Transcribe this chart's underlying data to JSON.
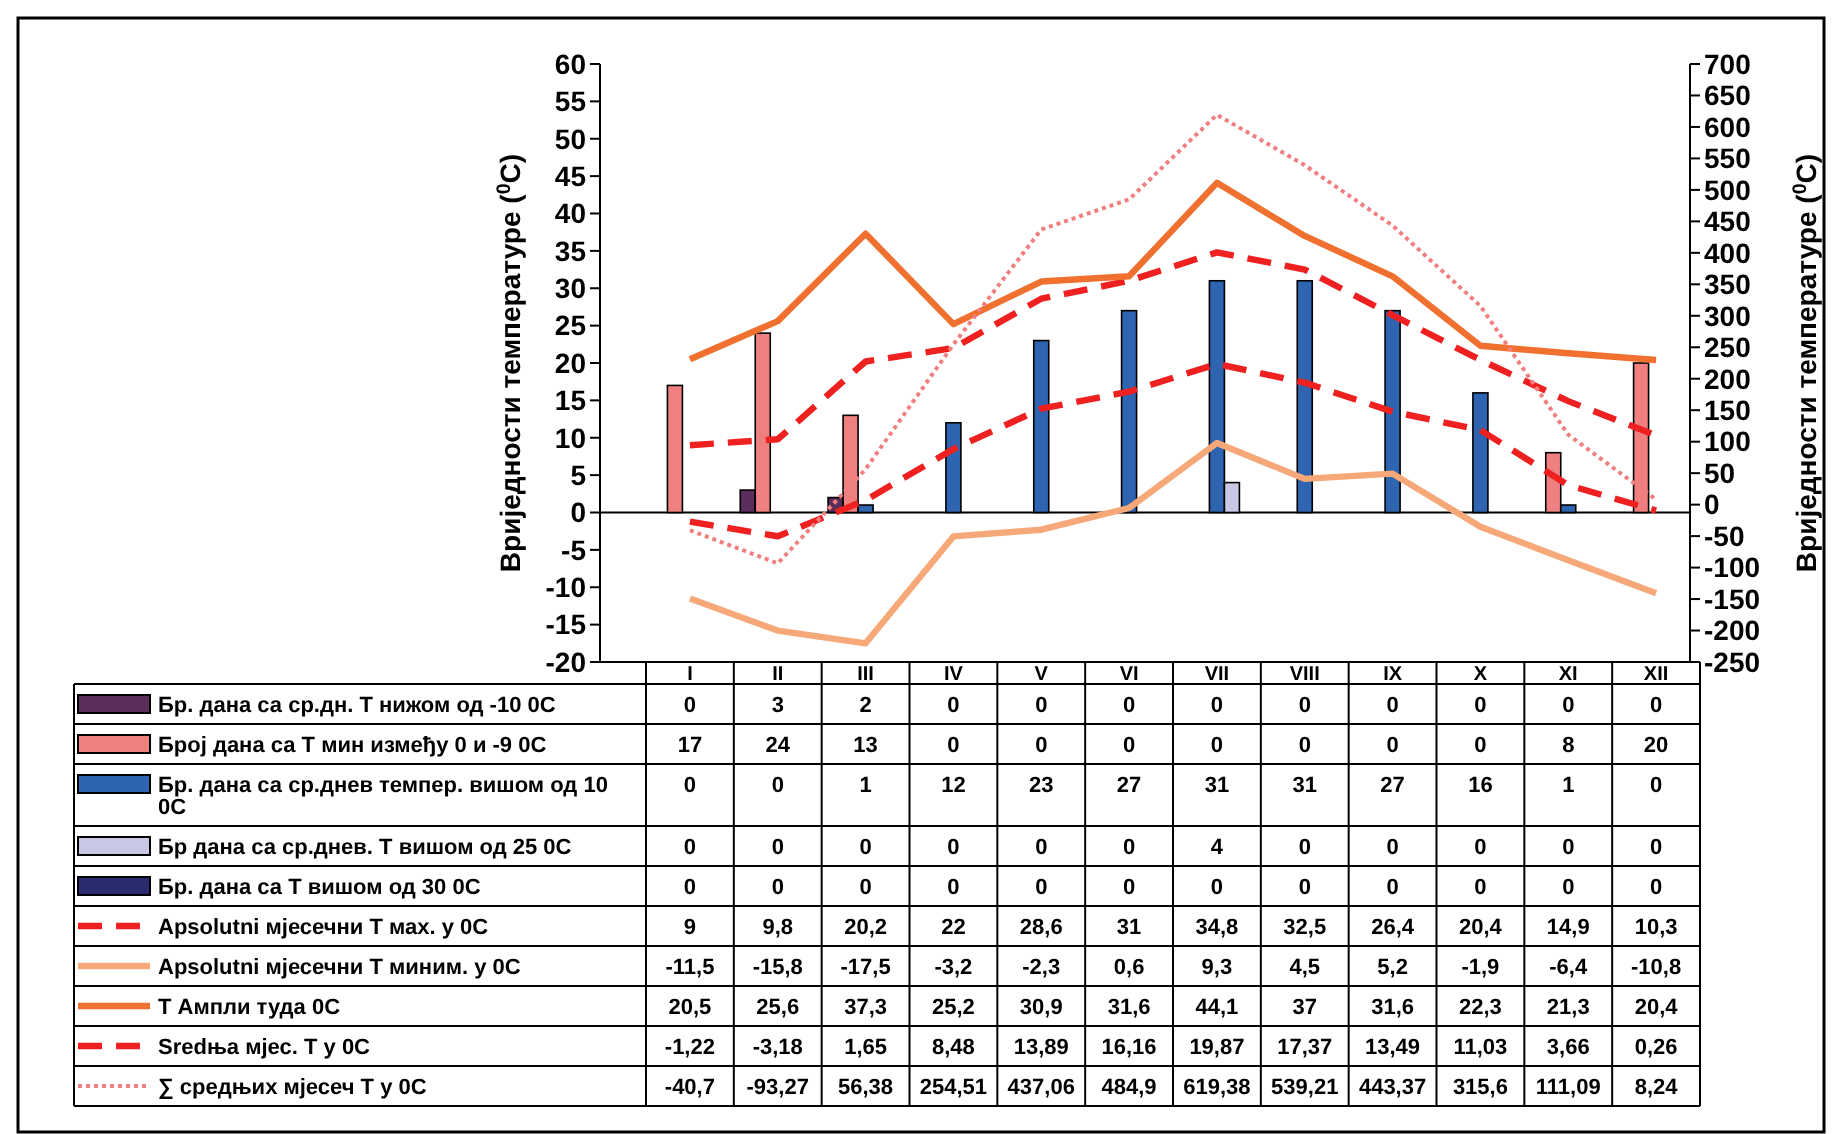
{
  "chart_data": {
    "type": "bar",
    "ylabel": "Вриједности температуре ($^{0}$C)",
    "y2label": "Вриједности температуре ($^{0}$C)",
    "categories": [
      "I",
      "II",
      "III",
      "IV",
      "V",
      "VI",
      "VII",
      "VIII",
      "IX",
      "X",
      "XI",
      "XII"
    ],
    "ylim": [
      -20,
      60
    ],
    "yticks": [
      -20,
      -15,
      -10,
      -5,
      0,
      5,
      10,
      15,
      20,
      25,
      30,
      35,
      40,
      45,
      50,
      55,
      60
    ],
    "y2lim": [
      -250,
      700
    ],
    "y2ticks": [
      -250,
      -200,
      -150,
      -100,
      -50,
      0,
      50,
      100,
      150,
      200,
      250,
      300,
      350,
      400,
      450,
      500,
      550,
      600,
      650,
      700
    ],
    "legend": "bottom",
    "series": [
      {
        "name": "Бр. дана са ср.дн. Т нижом од -10 0С",
        "color": "#5b2d5b",
        "values": [
          0,
          3,
          2,
          0,
          0,
          0,
          0,
          0,
          0,
          0,
          0,
          0
        ],
        "value_labels": [
          "0",
          "3",
          "2",
          "0",
          "0",
          "0",
          "0",
          "0",
          "0",
          "0",
          "0",
          "0"
        ]
      },
      {
        "name": "Број дана са Т мин између 0 и -9 0С",
        "color": "#f08080",
        "values": [
          17,
          24,
          13,
          0,
          0,
          0,
          0,
          0,
          0,
          0,
          8,
          20
        ],
        "value_labels": [
          "17",
          "24",
          "13",
          "0",
          "0",
          "0",
          "0",
          "0",
          "0",
          "0",
          "8",
          "20"
        ]
      },
      {
        "name": "Бр. дана са ср.днев темпер. вишом од 10 0С",
        "color": "#2e64b0",
        "values": [
          0,
          0,
          1,
          12,
          23,
          27,
          31,
          31,
          27,
          16,
          1,
          0
        ],
        "value_labels": [
          "0",
          "0",
          "1",
          "12",
          "23",
          "27",
          "31",
          "31",
          "27",
          "16",
          "1",
          "0"
        ]
      },
      {
        "name": "Бр дана са ср.днев. Т вишом од 25 0С",
        "color": "#c8c8e6",
        "values": [
          0,
          0,
          0,
          0,
          0,
          0,
          4,
          0,
          0,
          0,
          0,
          0
        ],
        "value_labels": [
          "0",
          "0",
          "0",
          "0",
          "0",
          "0",
          "4",
          "0",
          "0",
          "0",
          "0",
          "0"
        ]
      },
      {
        "name": "Бр. дана са Т вишом од 30 0С",
        "color": "#2a2a6e",
        "values": [
          0,
          0,
          0,
          0,
          0,
          0,
          0,
          0,
          0,
          0,
          0,
          0
        ],
        "value_labels": [
          "0",
          "0",
          "0",
          "0",
          "0",
          "0",
          "0",
          "0",
          "0",
          "0",
          "0",
          "0"
        ]
      },
      {
        "type": "line",
        "name": "Apsolutni мјесечни Т мах. у 0С",
        "color": "#ee2020",
        "line_style": "dashed",
        "values": [
          9,
          9.8,
          20.2,
          22,
          28.6,
          31,
          34.8,
          32.5,
          26.4,
          20.4,
          14.9,
          10.3
        ],
        "value_labels": [
          "9",
          "9,8",
          "20,2",
          "22",
          "28,6",
          "31",
          "34,8",
          "32,5",
          "26,4",
          "20,4",
          "14,9",
          "10,3"
        ]
      },
      {
        "type": "line",
        "name": "Apsolutni мјесечни Т миним. у 0С",
        "color": "#f7a878",
        "line_style": "solid",
        "values": [
          -11.5,
          -15.8,
          -17.5,
          -3.2,
          -2.3,
          0.6,
          9.3,
          4.5,
          5.2,
          -1.9,
          -6.4,
          -10.8
        ],
        "value_labels": [
          "-11,5",
          "-15,8",
          "-17,5",
          "-3,2",
          "-2,3",
          "0,6",
          "9,3",
          "4,5",
          "5,2",
          "-1,9",
          "-6,4",
          "-10,8"
        ]
      },
      {
        "type": "line",
        "name": "Т Ампли туда 0С",
        "color": "#f07030",
        "line_style": "solid",
        "values": [
          20.5,
          25.6,
          37.3,
          25.2,
          30.9,
          31.6,
          44.1,
          37,
          31.6,
          22.3,
          21.3,
          20.4
        ],
        "value_labels": [
          "20,5",
          "25,6",
          "37,3",
          "25,2",
          "30,9",
          "31,6",
          "44,1",
          "37",
          "31,6",
          "22,3",
          "21,3",
          "20,4"
        ]
      },
      {
        "type": "line",
        "name": "Sredња мјес. Т у 0С",
        "color": "#ee2020",
        "line_style": "dashed",
        "values": [
          -1.22,
          -3.18,
          1.65,
          8.48,
          13.89,
          16.16,
          19.87,
          17.37,
          13.49,
          11.03,
          3.66,
          0.26
        ],
        "value_labels": [
          "-1,22",
          "-3,18",
          "1,65",
          "8,48",
          "13,89",
          "16,16",
          "19,87",
          "17,37",
          "13,49",
          "11,03",
          "3,66",
          "0,26"
        ]
      },
      {
        "type": "line",
        "name": "∑ средњих мјесеч Т у  0С",
        "color": "#f08080",
        "line_style": "dotted",
        "axis": "y2",
        "values": [
          -40.7,
          -93.27,
          56.38,
          254.51,
          437.06,
          484.9,
          619.38,
          539.21,
          443.37,
          315.6,
          111.09,
          8.24
        ],
        "value_labels": [
          "-40,7",
          "-93,27",
          "56,38",
          "254,51",
          "437,06",
          "484,9",
          "619,38",
          "539,21",
          "443,37",
          "315,6",
          "111,09",
          "8,24"
        ]
      }
    ]
  }
}
